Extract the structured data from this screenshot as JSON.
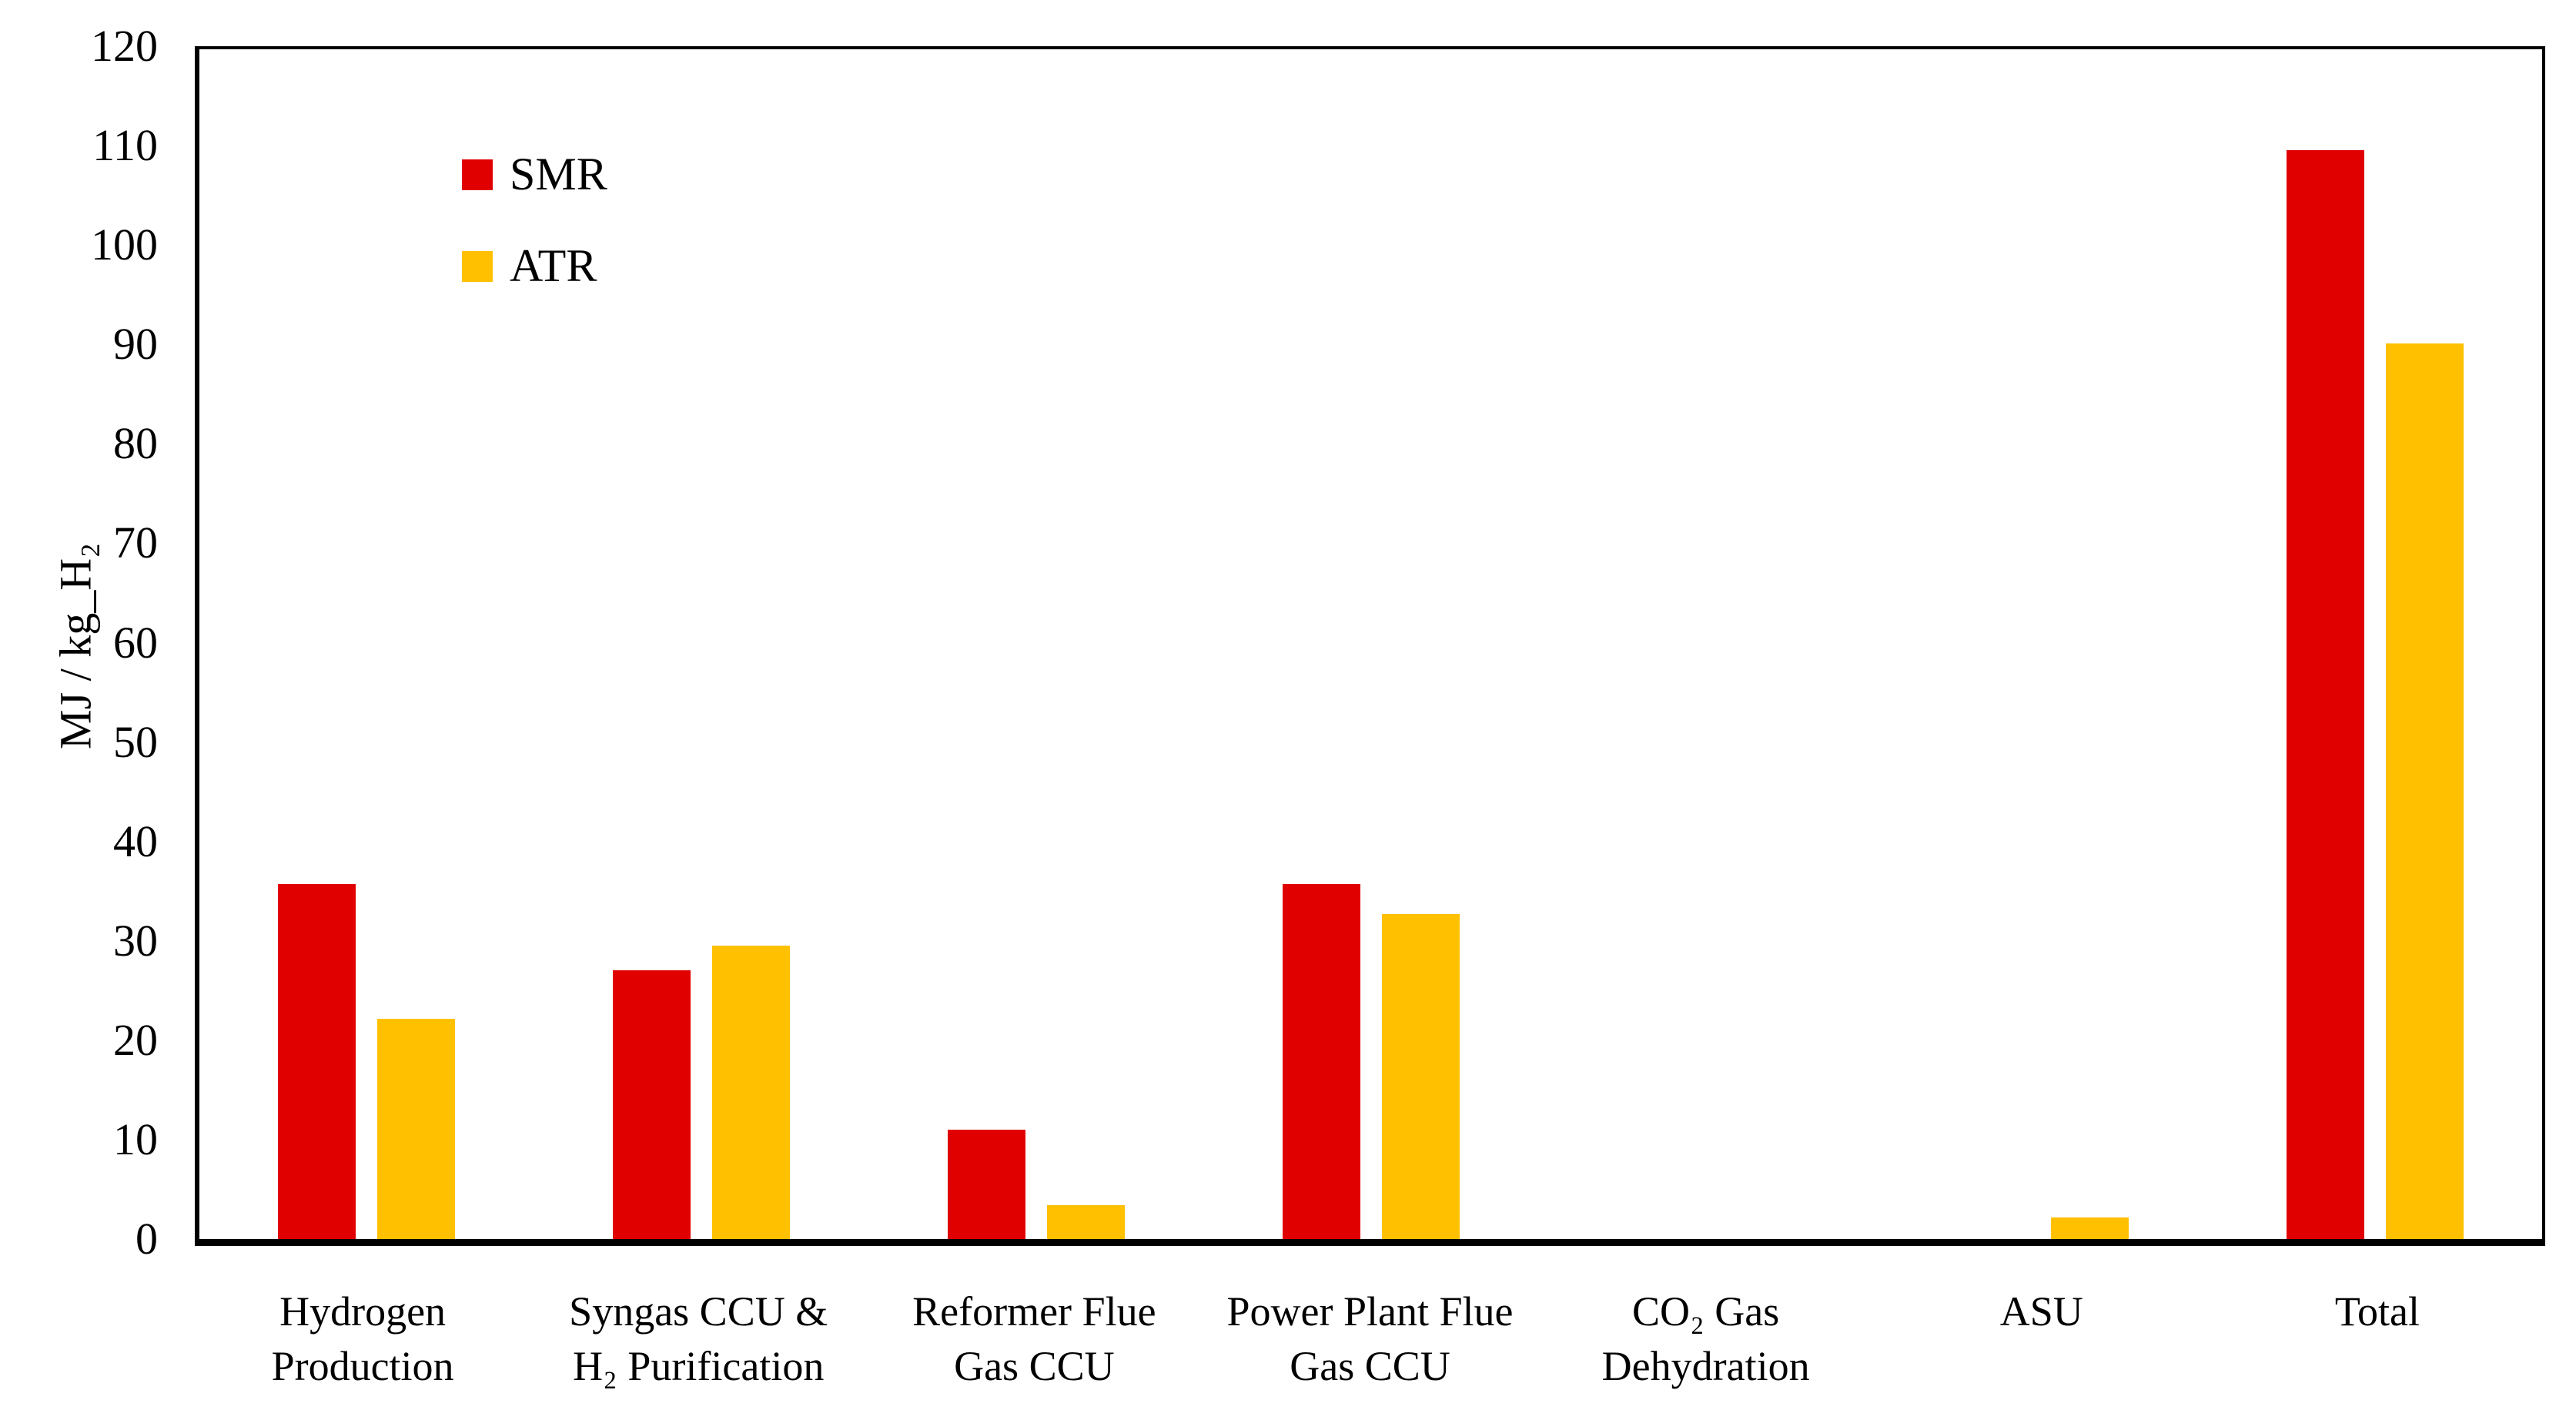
{
  "chart_data": {
    "type": "bar",
    "title": "",
    "xlabel": "",
    "ylabel": "MJ / kg_H₂",
    "ylim": [
      0,
      120
    ],
    "ytick_step": 10,
    "yticks": [
      0,
      10,
      20,
      30,
      40,
      50,
      60,
      70,
      80,
      90,
      100,
      110,
      120
    ],
    "grid": false,
    "legend_position": "top-left",
    "categories": [
      "Hydrogen Production",
      "Syngas CCU & H₂ Purification",
      "Reformer Flue Gas CCU",
      "Power Plant Flue Gas CCU",
      "CO₂ Gas Dehydration",
      "ASU",
      "Total"
    ],
    "category_lines": [
      [
        "Hydrogen",
        "Production"
      ],
      [
        "Syngas CCU &",
        "H₂ Purification"
      ],
      [
        "Reformer Flue",
        "Gas CCU"
      ],
      [
        "Power Plant Flue",
        "Gas CCU"
      ],
      [
        "CO₂ Gas",
        "Dehydration"
      ],
      [
        "ASU"
      ],
      [
        "Total"
      ]
    ],
    "series": [
      {
        "name": "SMR",
        "color": "#E00000",
        "values": [
          35.8,
          27.1,
          11.0,
          35.8,
          0,
          0,
          109.8
        ]
      },
      {
        "name": "ATR",
        "color": "#FFC000",
        "values": [
          22.2,
          29.6,
          3.4,
          32.8,
          0,
          2.2,
          90.3
        ]
      }
    ],
    "axis_color": "#000000",
    "background_color": "#FFFFFF"
  }
}
